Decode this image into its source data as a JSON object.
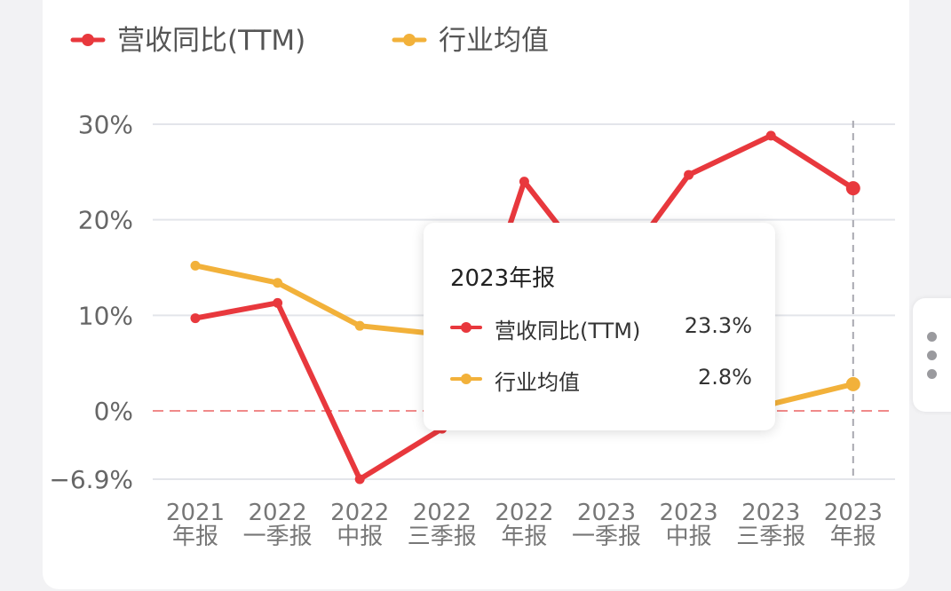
{
  "legend": [
    {
      "label": "营收同比(TTM)",
      "color": "#e8383d"
    },
    {
      "label": "行业均值",
      "color": "#f2b13a"
    }
  ],
  "chart_data": {
    "type": "line",
    "categories": [
      [
        "2021",
        "年报"
      ],
      [
        "2022",
        "一季报"
      ],
      [
        "2022",
        "中报"
      ],
      [
        "2022",
        "三季报"
      ],
      [
        "2022",
        "年报"
      ],
      [
        "2023",
        "一季报"
      ],
      [
        "2023",
        "中报"
      ],
      [
        "2023",
        "三季报"
      ],
      [
        "2023",
        "年报"
      ]
    ],
    "y_ticks": [
      {
        "value": 30,
        "label": "30%"
      },
      {
        "value": 20,
        "label": "20%"
      },
      {
        "value": 10,
        "label": "10%"
      },
      {
        "value": 0,
        "label": "0%"
      },
      {
        "value": -6.9,
        "label": "−6.9%"
      }
    ],
    "ylim": [
      -6.9,
      30
    ],
    "series": [
      {
        "name": "营收同比(TTM)",
        "color": "#e8383d",
        "values": [
          9.7,
          11.3,
          -6.9,
          -1.8,
          24.0,
          13.0,
          24.7,
          28.8,
          23.3
        ]
      },
      {
        "name": "行业均值",
        "color": "#f2b13a",
        "values": [
          15.2,
          13.4,
          8.9,
          8.0,
          5.5,
          4.0,
          0.5,
          0.7,
          2.8
        ]
      }
    ],
    "zero_line_color": "#f08a8a",
    "grid": true,
    "legend_position": "top-left"
  },
  "tooltip": {
    "title": "2023年报",
    "rows": [
      {
        "name": "营收同比(TTM)",
        "value": "23.3%",
        "color": "#e8383d"
      },
      {
        "name": "行业均值",
        "value": "2.8%",
        "color": "#f2b13a"
      }
    ]
  }
}
